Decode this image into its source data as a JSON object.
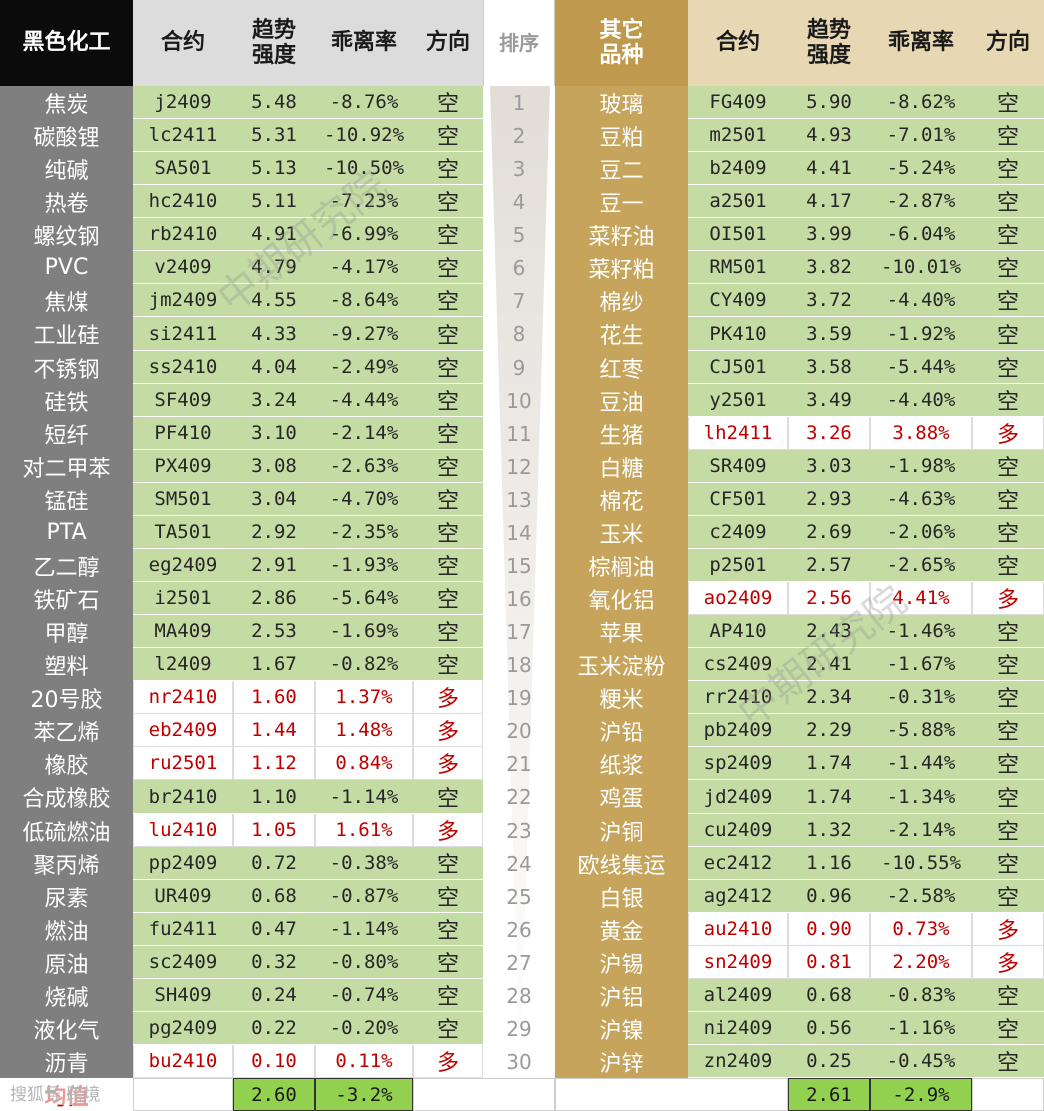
{
  "headers": {
    "left_category": "黑色化工",
    "contract": "合约",
    "trend_line1": "趋势",
    "trend_line2": "强度",
    "deviation": "乖离率",
    "direction": "方向",
    "rank": "排序",
    "right_category_line1": "其它",
    "right_category_line2": "品种"
  },
  "avg_label": "均值",
  "left_avg": {
    "trend": "2.60",
    "dev": "-3.2%"
  },
  "right_avg": {
    "trend": "2.61",
    "dev": "-2.9%"
  },
  "watermark": "中期研究院",
  "corner_logo": "搜狐号 跨境",
  "colors": {
    "short_bg": "#c4dca4",
    "long_text": "#c00000",
    "avg_bg": "#92d050",
    "gold_header": "#bf9a4e"
  },
  "left_rows": [
    {
      "name": "焦炭",
      "code": "j2409",
      "trend": "5.48",
      "dev": "-8.76%",
      "dir": "空"
    },
    {
      "name": "碳酸锂",
      "code": "lc2411",
      "trend": "5.31",
      "dev": "-10.92%",
      "dir": "空"
    },
    {
      "name": "纯碱",
      "code": "SA501",
      "trend": "5.13",
      "dev": "-10.50%",
      "dir": "空"
    },
    {
      "name": "热卷",
      "code": "hc2410",
      "trend": "5.11",
      "dev": "-7.23%",
      "dir": "空"
    },
    {
      "name": "螺纹钢",
      "code": "rb2410",
      "trend": "4.91",
      "dev": "-6.99%",
      "dir": "空"
    },
    {
      "name": "PVC",
      "code": "v2409",
      "trend": "4.79",
      "dev": "-4.17%",
      "dir": "空"
    },
    {
      "name": "焦煤",
      "code": "jm2409",
      "trend": "4.55",
      "dev": "-8.64%",
      "dir": "空"
    },
    {
      "name": "工业硅",
      "code": "si2411",
      "trend": "4.33",
      "dev": "-9.27%",
      "dir": "空"
    },
    {
      "name": "不锈钢",
      "code": "ss2410",
      "trend": "4.04",
      "dev": "-2.49%",
      "dir": "空"
    },
    {
      "name": "硅铁",
      "code": "SF409",
      "trend": "3.24",
      "dev": "-4.44%",
      "dir": "空"
    },
    {
      "name": "短纤",
      "code": "PF410",
      "trend": "3.10",
      "dev": "-2.14%",
      "dir": "空"
    },
    {
      "name": "对二甲苯",
      "code": "PX409",
      "trend": "3.08",
      "dev": "-2.63%",
      "dir": "空"
    },
    {
      "name": "锰硅",
      "code": "SM501",
      "trend": "3.04",
      "dev": "-4.70%",
      "dir": "空"
    },
    {
      "name": "PTA",
      "code": "TA501",
      "trend": "2.92",
      "dev": "-2.35%",
      "dir": "空"
    },
    {
      "name": "乙二醇",
      "code": "eg2409",
      "trend": "2.91",
      "dev": "-1.93%",
      "dir": "空"
    },
    {
      "name": "铁矿石",
      "code": "i2501",
      "trend": "2.86",
      "dev": "-5.64%",
      "dir": "空"
    },
    {
      "name": "甲醇",
      "code": "MA409",
      "trend": "2.53",
      "dev": "-1.69%",
      "dir": "空"
    },
    {
      "name": "塑料",
      "code": "l2409",
      "trend": "1.67",
      "dev": "-0.82%",
      "dir": "空"
    },
    {
      "name": "20号胶",
      "code": "nr2410",
      "trend": "1.60",
      "dev": "1.37%",
      "dir": "多"
    },
    {
      "name": "苯乙烯",
      "code": "eb2409",
      "trend": "1.44",
      "dev": "1.48%",
      "dir": "多"
    },
    {
      "name": "橡胶",
      "code": "ru2501",
      "trend": "1.12",
      "dev": "0.84%",
      "dir": "多"
    },
    {
      "name": "合成橡胶",
      "code": "br2410",
      "trend": "1.10",
      "dev": "-1.14%",
      "dir": "空"
    },
    {
      "name": "低硫燃油",
      "code": "lu2410",
      "trend": "1.05",
      "dev": "1.61%",
      "dir": "多"
    },
    {
      "name": "聚丙烯",
      "code": "pp2409",
      "trend": "0.72",
      "dev": "-0.38%",
      "dir": "空"
    },
    {
      "name": "尿素",
      "code": "UR409",
      "trend": "0.68",
      "dev": "-0.87%",
      "dir": "空"
    },
    {
      "name": "燃油",
      "code": "fu2411",
      "trend": "0.47",
      "dev": "-1.14%",
      "dir": "空"
    },
    {
      "name": "原油",
      "code": "sc2409",
      "trend": "0.32",
      "dev": "-0.80%",
      "dir": "空"
    },
    {
      "name": "烧碱",
      "code": "SH409",
      "trend": "0.24",
      "dev": "-0.74%",
      "dir": "空"
    },
    {
      "name": "液化气",
      "code": "pg2409",
      "trend": "0.22",
      "dev": "-0.20%",
      "dir": "空"
    },
    {
      "name": "沥青",
      "code": "bu2410",
      "trend": "0.10",
      "dev": "0.11%",
      "dir": "多"
    }
  ],
  "right_rows": [
    {
      "name": "玻璃",
      "code": "FG409",
      "trend": "5.90",
      "dev": "-8.62%",
      "dir": "空"
    },
    {
      "name": "豆粕",
      "code": "m2501",
      "trend": "4.93",
      "dev": "-7.01%",
      "dir": "空"
    },
    {
      "name": "豆二",
      "code": "b2409",
      "trend": "4.41",
      "dev": "-5.24%",
      "dir": "空"
    },
    {
      "name": "豆一",
      "code": "a2501",
      "trend": "4.17",
      "dev": "-2.87%",
      "dir": "空"
    },
    {
      "name": "菜籽油",
      "code": "OI501",
      "trend": "3.99",
      "dev": "-6.04%",
      "dir": "空"
    },
    {
      "name": "菜籽粕",
      "code": "RM501",
      "trend": "3.82",
      "dev": "-10.01%",
      "dir": "空"
    },
    {
      "name": "棉纱",
      "code": "CY409",
      "trend": "3.72",
      "dev": "-4.40%",
      "dir": "空"
    },
    {
      "name": "花生",
      "code": "PK410",
      "trend": "3.59",
      "dev": "-1.92%",
      "dir": "空"
    },
    {
      "name": "红枣",
      "code": "CJ501",
      "trend": "3.58",
      "dev": "-5.44%",
      "dir": "空"
    },
    {
      "name": "豆油",
      "code": "y2501",
      "trend": "3.49",
      "dev": "-4.40%",
      "dir": "空"
    },
    {
      "name": "生猪",
      "code": "lh2411",
      "trend": "3.26",
      "dev": "3.88%",
      "dir": "多"
    },
    {
      "name": "白糖",
      "code": "SR409",
      "trend": "3.03",
      "dev": "-1.98%",
      "dir": "空"
    },
    {
      "name": "棉花",
      "code": "CF501",
      "trend": "2.93",
      "dev": "-4.63%",
      "dir": "空"
    },
    {
      "name": "玉米",
      "code": "c2409",
      "trend": "2.69",
      "dev": "-2.06%",
      "dir": "空"
    },
    {
      "name": "棕榈油",
      "code": "p2501",
      "trend": "2.57",
      "dev": "-2.65%",
      "dir": "空"
    },
    {
      "name": "氧化铝",
      "code": "ao2409",
      "trend": "2.56",
      "dev": "4.41%",
      "dir": "多"
    },
    {
      "name": "苹果",
      "code": "AP410",
      "trend": "2.43",
      "dev": "-1.46%",
      "dir": "空"
    },
    {
      "name": "玉米淀粉",
      "code": "cs2409",
      "trend": "2.41",
      "dev": "-1.67%",
      "dir": "空"
    },
    {
      "name": "粳米",
      "code": "rr2410",
      "trend": "2.34",
      "dev": "-0.31%",
      "dir": "空"
    },
    {
      "name": "沪铅",
      "code": "pb2409",
      "trend": "2.29",
      "dev": "-5.88%",
      "dir": "空"
    },
    {
      "name": "纸浆",
      "code": "sp2409",
      "trend": "1.74",
      "dev": "-1.44%",
      "dir": "空"
    },
    {
      "name": "鸡蛋",
      "code": "jd2409",
      "trend": "1.74",
      "dev": "-1.34%",
      "dir": "空"
    },
    {
      "name": "沪铜",
      "code": "cu2409",
      "trend": "1.32",
      "dev": "-2.14%",
      "dir": "空"
    },
    {
      "name": "欧线集运",
      "code": "ec2412",
      "trend": "1.16",
      "dev": "-10.55%",
      "dir": "空"
    },
    {
      "name": "白银",
      "code": "ag2412",
      "trend": "0.96",
      "dev": "-2.58%",
      "dir": "空"
    },
    {
      "name": "黄金",
      "code": "au2410",
      "trend": "0.90",
      "dev": "0.73%",
      "dir": "多"
    },
    {
      "name": "沪锡",
      "code": "sn2409",
      "trend": "0.81",
      "dev": "2.20%",
      "dir": "多"
    },
    {
      "name": "沪铝",
      "code": "al2409",
      "trend": "0.68",
      "dev": "-0.83%",
      "dir": "空"
    },
    {
      "name": "沪镍",
      "code": "ni2409",
      "trend": "0.56",
      "dev": "-1.16%",
      "dir": "空"
    },
    {
      "name": "沪锌",
      "code": "zn2409",
      "trend": "0.25",
      "dev": "-0.45%",
      "dir": "空"
    }
  ]
}
